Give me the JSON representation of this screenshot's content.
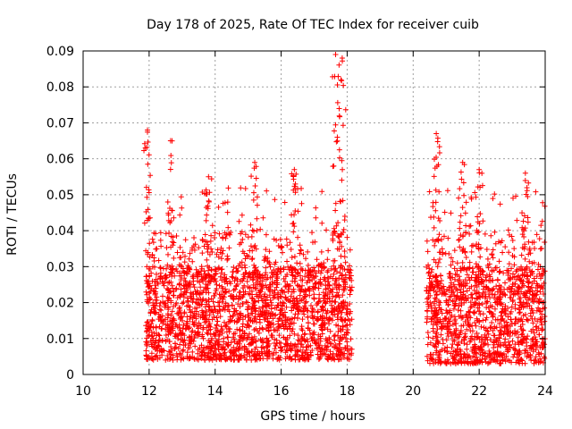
{
  "chart_data": {
    "type": "scatter",
    "title": "Day 178 of 2025, Rate Of TEC Index for receiver cuib",
    "xlabel": "GPS time / hours",
    "ylabel": "ROTI / TECUs",
    "xlim": [
      10,
      24
    ],
    "ylim": [
      0,
      0.09
    ],
    "xticks": [
      "10",
      "12",
      "14",
      "16",
      "18",
      "20",
      "22",
      "24"
    ],
    "yticks": [
      "0",
      "0.01",
      "0.02",
      "0.03",
      "0.04",
      "0.05",
      "0.06",
      "0.07",
      "0.08",
      "0.09"
    ],
    "grid": true,
    "marker": "+",
    "series_color": "#ff0000",
    "data_ranges": [
      {
        "x_start": 11.9,
        "x_end": 18.15,
        "typical_low": 0.004,
        "typical_high": 0.03
      },
      {
        "x_start": 20.4,
        "x_end": 24.0,
        "typical_low": 0.003,
        "typical_high": 0.03
      }
    ],
    "peaks": [
      {
        "x": 11.95,
        "y": 0.068
      },
      {
        "x": 12.65,
        "y": 0.065
      },
      {
        "x": 13.8,
        "y": 0.055
      },
      {
        "x": 15.2,
        "y": 0.059
      },
      {
        "x": 16.4,
        "y": 0.057
      },
      {
        "x": 17.65,
        "y": 0.089
      },
      {
        "x": 17.85,
        "y": 0.088
      },
      {
        "x": 20.7,
        "y": 0.067
      },
      {
        "x": 21.5,
        "y": 0.059
      },
      {
        "x": 22.0,
        "y": 0.057
      },
      {
        "x": 23.4,
        "y": 0.056
      }
    ]
  }
}
